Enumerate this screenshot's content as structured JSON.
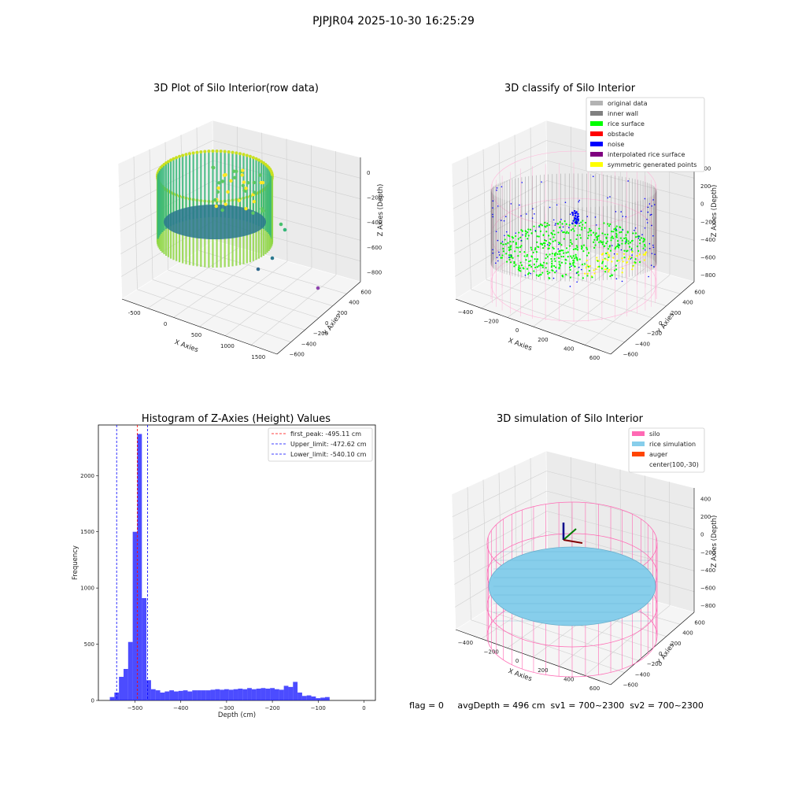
{
  "figure": {
    "suptitle": "PJPJR04 2025-10-30 16:25:29",
    "footer": "flag = 0     avgDepth = 496 cm  sv1 = 700~2300  sv2 = 700~2300"
  },
  "panels": {
    "raw": {
      "title": "3D Plot of Silo Interior(row data)",
      "xlabel": "X Axies",
      "ylabel": "Y Axies",
      "zlabel": "Z Axies (Depth)",
      "xticks": [
        "-500",
        "0",
        "500",
        "1000",
        "1500"
      ],
      "yticks": [
        "600",
        "400",
        "200",
        "0",
        "−200",
        "−400",
        "−600"
      ],
      "zticks": [
        "0",
        "−200",
        "−400",
        "−600",
        "−800"
      ]
    },
    "classify": {
      "title": "3D classify of Silo Interior",
      "xlabel": "X Axies",
      "ylabel": "Y Axies",
      "zlabel": "Z Axies (Depth)",
      "xticks": [
        "−400",
        "−200",
        "0",
        "200",
        "400",
        "600"
      ],
      "yticks": [
        "600",
        "400",
        "200",
        "0",
        "−200",
        "−400",
        "−600"
      ],
      "zticks": [
        "400",
        "200",
        "0",
        "−200",
        "−400",
        "−600",
        "−800"
      ],
      "legend": [
        {
          "label": "original data",
          "color": "#b3b3b3"
        },
        {
          "label": "inner wall",
          "color": "#808080"
        },
        {
          "label": "rice surface",
          "color": "#00ff00"
        },
        {
          "label": "obstacle",
          "color": "#ff0000"
        },
        {
          "label": "noise",
          "color": "#0000ff"
        },
        {
          "label": "interpolated rice surface",
          "color": "#800080"
        },
        {
          "label": "symmetric generated points",
          "color": "#ffff00"
        }
      ]
    },
    "simulation": {
      "title": "3D simulation of Silo Interior",
      "xlabel": "X Axies",
      "ylabel": "Y Axies",
      "zlabel": "Z Axies (Depth)",
      "xticks": [
        "−400",
        "−200",
        "0",
        "200",
        "400",
        "600"
      ],
      "yticks": [
        "600",
        "400",
        "200",
        "0",
        "−200",
        "−400",
        "−600"
      ],
      "zticks": [
        "400",
        "200",
        "0",
        "−200",
        "−400",
        "−600",
        "−800"
      ],
      "legend": [
        {
          "label": "silo",
          "color": "#ff69b4"
        },
        {
          "label": "rice simulation",
          "color": "#87ceeb"
        },
        {
          "label": "auger",
          "color": "#ff4500"
        },
        {
          "label": "center(100,-30)",
          "color": ""
        }
      ]
    }
  },
  "chart_data": [
    {
      "type": "scatter",
      "title": "3D Plot of Silo Interior(row data)",
      "xlabel": "X Axies",
      "ylabel": "Y Axies",
      "zlabel": "Z Axies (Depth)",
      "xlim": [
        -600,
        1600
      ],
      "ylim": [
        -650,
        650
      ],
      "zlim": [
        -900,
        0
      ],
      "grid": true,
      "colormap": "viridis",
      "description_points": "cylindrical point cloud of silo wall, depth approx -100 to -900"
    },
    {
      "type": "scatter",
      "title": "3D classify of Silo Interior",
      "xlabel": "X Axies",
      "ylabel": "Y Axies",
      "zlabel": "Z Axies (Depth)",
      "xlim": [
        -500,
        700
      ],
      "ylim": [
        -650,
        650
      ],
      "zlim": [
        -900,
        400
      ],
      "legend_position": "upper right",
      "series": [
        {
          "name": "original data",
          "color": "#b3b3b3"
        },
        {
          "name": "inner wall",
          "color": "#808080"
        },
        {
          "name": "rice surface",
          "color": "#00ff00"
        },
        {
          "name": "obstacle",
          "color": "#ff0000"
        },
        {
          "name": "noise",
          "color": "#0000ff"
        },
        {
          "name": "interpolated rice surface",
          "color": "#800080"
        },
        {
          "name": "symmetric generated points",
          "color": "#ffff00"
        }
      ]
    },
    {
      "type": "bar",
      "title": "Histogram of Z-Axies (Height) Values",
      "xlabel": "Depth (cm)",
      "ylabel": "Frequency",
      "xlim": [
        -580,
        25
      ],
      "ylim": [
        0,
        2450
      ],
      "xticks": [
        -500,
        -400,
        -300,
        -200,
        -100,
        0
      ],
      "yticks": [
        0,
        500,
        1000,
        1500,
        2000
      ],
      "bin_width": 10,
      "bin_start": -555,
      "values": [
        30,
        70,
        210,
        280,
        520,
        1500,
        2370,
        910,
        180,
        100,
        90,
        70,
        80,
        90,
        80,
        85,
        90,
        80,
        90,
        90,
        90,
        90,
        95,
        100,
        95,
        100,
        95,
        100,
        105,
        100,
        110,
        100,
        105,
        110,
        105,
        110,
        100,
        95,
        130,
        120,
        165,
        70,
        40,
        45,
        35,
        20,
        25,
        30
      ],
      "color": "#0000ff",
      "vlines": [
        {
          "x": -495.11,
          "label": "first_peak: -495.11 cm",
          "color": "#ff0000"
        },
        {
          "x": -472.62,
          "label": "Upper_limit: -472.62 cm",
          "color": "#0000ff"
        },
        {
          "x": -540.1,
          "label": "Lower_limit: -540.10 cm",
          "color": "#0000ff"
        }
      ],
      "legend_position": "upper right"
    },
    {
      "type": "scatter",
      "title": "3D simulation of Silo Interior",
      "xlabel": "X Axies",
      "ylabel": "Y Axies",
      "zlabel": "Z Axies (Depth)",
      "xlim": [
        -500,
        700
      ],
      "ylim": [
        -650,
        650
      ],
      "zlim": [
        -900,
        400
      ],
      "legend_position": "upper right",
      "series": [
        {
          "name": "silo",
          "color": "#ff69b4"
        },
        {
          "name": "rice simulation",
          "color": "#87ceeb"
        },
        {
          "name": "auger",
          "color": "#ff4500"
        },
        {
          "name": "center(100,-30)",
          "color": ""
        }
      ]
    }
  ]
}
